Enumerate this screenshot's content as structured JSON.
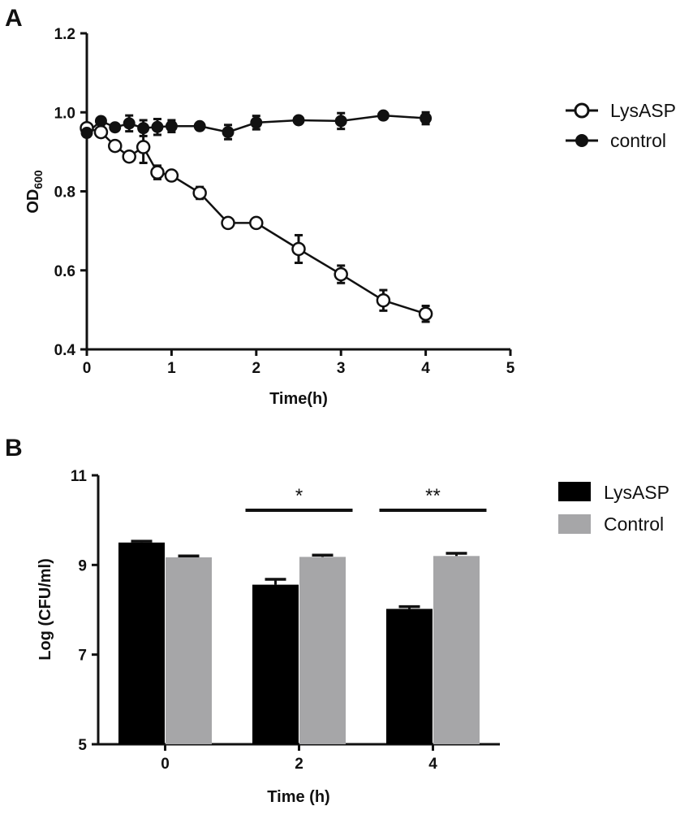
{
  "chart_data": [
    {
      "type": "line",
      "panel": "A",
      "xlabel": "Time(h)",
      "ylabel": "OD",
      "ylabel_subscript": "600",
      "xlim": [
        0,
        5
      ],
      "ylim": [
        0.4,
        1.2
      ],
      "xticks": [
        0,
        1,
        2,
        3,
        4,
        5
      ],
      "yticks": [
        0.4,
        0.6,
        0.8,
        1.0,
        1.2
      ],
      "xtick_labels": [
        "0",
        "1",
        "2",
        "3",
        "4",
        "5"
      ],
      "ytick_labels": [
        "0.4",
        "0.6",
        "0.8",
        "1.0",
        "1.2"
      ],
      "grid": false,
      "legend_position": "right",
      "series": [
        {
          "name": "LysASP",
          "marker": "open-circle",
          "x": [
            0,
            0.167,
            0.333,
            0.5,
            0.667,
            0.833,
            1,
            1.333,
            1.667,
            2,
            2.5,
            3,
            3.5,
            4
          ],
          "y": [
            0.96,
            0.95,
            0.915,
            0.888,
            0.912,
            0.848,
            0.84,
            0.796,
            0.72,
            0.72,
            0.654,
            0.59,
            0.524,
            0.49
          ],
          "err": [
            0.005,
            0.005,
            0.005,
            0.005,
            0.04,
            0.017,
            0.005,
            0.015,
            0.005,
            0.005,
            0.035,
            0.022,
            0.026,
            0.02
          ]
        },
        {
          "name": "control",
          "marker": "filled-circle",
          "x": [
            0,
            0.167,
            0.333,
            0.5,
            0.667,
            0.833,
            1,
            1.333,
            1.667,
            2,
            2.5,
            3,
            3.5,
            4
          ],
          "y": [
            0.948,
            0.978,
            0.962,
            0.972,
            0.96,
            0.963,
            0.965,
            0.965,
            0.95,
            0.974,
            0.98,
            0.978,
            0.992,
            0.985
          ],
          "err": [
            0.004,
            0.004,
            0.004,
            0.02,
            0.02,
            0.02,
            0.015,
            0.004,
            0.018,
            0.017,
            0.004,
            0.02,
            0.004,
            0.015
          ]
        }
      ]
    },
    {
      "type": "bar",
      "panel": "B",
      "xlabel": "Time (h)",
      "ylabel": "Log (CFU/ml)",
      "categories": [
        "0",
        "2",
        "4"
      ],
      "ylim": [
        5,
        11
      ],
      "yticks": [
        5,
        7,
        9,
        11
      ],
      "ytick_labels": [
        "5",
        "7",
        "9",
        "11"
      ],
      "grid": false,
      "legend_position": "right",
      "series": [
        {
          "name": "LysASP",
          "color": "#000000",
          "values": [
            9.5,
            8.56,
            8.02
          ],
          "err": [
            0.03,
            0.12,
            0.05
          ]
        },
        {
          "name": "Control",
          "color": "#a6a6a8",
          "values": [
            9.17,
            9.18,
            9.2
          ],
          "err": [
            0.03,
            0.04,
            0.06
          ]
        }
      ],
      "significance": [
        {
          "category": "2",
          "label": "*"
        },
        {
          "category": "4",
          "label": "**"
        }
      ]
    }
  ]
}
